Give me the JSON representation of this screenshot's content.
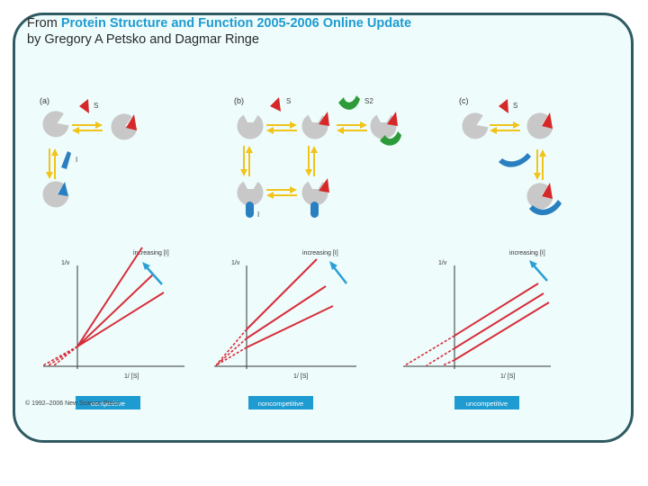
{
  "header": {
    "line1_prefix": "From ",
    "line1_highlight": "Protein Structure and Function 2005-2006 Online Update",
    "line2": "by Gregory A Petsko and Dagmar Ringe"
  },
  "colors": {
    "frame": "#2f5a62",
    "background": "#effcfc",
    "title_highlight": "#1e9bd1",
    "enzyme": "#c8c8c8",
    "substrate": "#d62828",
    "substrate2": "#2e9b3a",
    "inhibitor": "#2a7fc0",
    "arrow": "#f0c419",
    "plot_line": "#d62e3a",
    "plot_arrow": "#2a9fd6",
    "label_box": "#1e9bd1"
  },
  "panels": {
    "a": {
      "label": "(a)",
      "substrate": "S",
      "inhibitor": "I"
    },
    "b": {
      "label": "(b)",
      "substrate": "S",
      "substrate2": "S2",
      "inhibitor": "I"
    },
    "c": {
      "label": "(c)",
      "substrate": "S"
    }
  },
  "plots": [
    {
      "ylabel": "1/v",
      "xlabel": "1/ [S]",
      "annotation": "increasing [I]",
      "type_label": "competitive"
    },
    {
      "ylabel": "1/v",
      "xlabel": "1/ [S]",
      "annotation": "increasing [I]",
      "type_label": "noncompetitive"
    },
    {
      "ylabel": "1/v",
      "xlabel": "1/ [S]",
      "annotation": "increasing [I]",
      "type_label": "uncompetitive"
    }
  ],
  "copyright": "© 1992–2006 New Science Press"
}
